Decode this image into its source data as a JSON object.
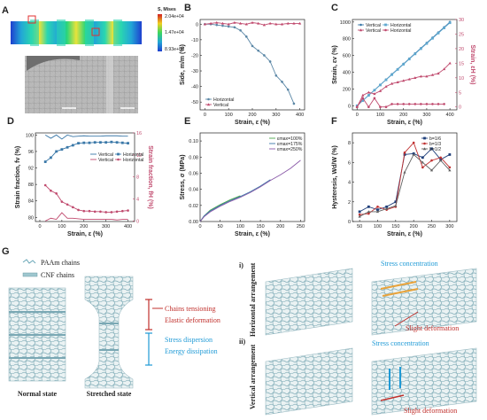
{
  "panels": {
    "A": {
      "label": "A",
      "colorbar_title": "S, Mises",
      "colorbar_ticks": [
        "2.04e+04",
        "1.47e+04",
        "8.93e+03"
      ]
    },
    "G": {
      "label": "G",
      "legend": [
        "PAAm chains",
        "CNF chains"
      ],
      "states": [
        "Normal state",
        "Stretched state"
      ],
      "annotations": [
        "Chains tensioning",
        "Elastic deformation",
        "Stress dispersion",
        "Energy dissipation"
      ],
      "sub_i": "i)",
      "sub_ii": "ii)",
      "row_i": "Horizontal arrangement",
      "row_ii": "Vertical arrangement",
      "stress_concentration": "Stress concentration",
      "slight_deformation": "Slight deformation"
    }
  },
  "chart_data": [
    {
      "id": "B",
      "type": "line",
      "xlabel": "Strain, ε (%)",
      "ylabel": "Side, m/m (%)",
      "xlim": [
        -20,
        420
      ],
      "ylim": [
        -55,
        3
      ],
      "xticks": [
        0,
        100,
        200,
        300,
        400
      ],
      "yticks": [
        0,
        -10,
        -20,
        -30,
        -40,
        -50
      ],
      "legend_position": "lower-left",
      "series": [
        {
          "name": "Horizontal",
          "color": "#5b87a6",
          "marker": "circle",
          "x": [
            0,
            25,
            50,
            75,
            100,
            125,
            150,
            175,
            200,
            225,
            250,
            275,
            300,
            325,
            350,
            375
          ],
          "y": [
            0,
            0,
            -0.5,
            -1,
            -1.5,
            -2,
            -4,
            -8,
            -14,
            -17,
            -20,
            -24,
            -33,
            -37,
            -42,
            -51
          ]
        },
        {
          "name": "Vertical",
          "color": "#c04a6e",
          "marker": "triangle",
          "x": [
            0,
            25,
            50,
            75,
            100,
            125,
            150,
            175,
            200,
            225,
            250,
            275,
            300,
            325,
            350,
            375,
            400
          ],
          "y": [
            0,
            0.5,
            1,
            0.5,
            0,
            1,
            0.5,
            0,
            1,
            0.5,
            -0.5,
            0.5,
            0,
            0,
            0.5,
            0.5,
            0.5
          ]
        }
      ]
    },
    {
      "id": "C",
      "type": "line",
      "xlabel": "Strain, ε (%)",
      "ylabel": "Strain, εv (%)",
      "ylabel2": "Strain, εH (%)",
      "xlim": [
        -20,
        430
      ],
      "ylim": [
        -50,
        1030
      ],
      "ylim2": [
        -1,
        30
      ],
      "xticks": [
        0,
        100,
        200,
        300,
        400
      ],
      "yticks": [
        0,
        200,
        400,
        600,
        800,
        1000
      ],
      "yticks2": [
        0,
        5,
        10,
        15,
        20,
        25,
        30
      ],
      "legend_position": "top-left",
      "series": [
        {
          "name": "Vertical",
          "axis": "left",
          "color": "#3a78a8",
          "marker": "circle",
          "x": [
            0,
            25,
            50,
            75,
            100,
            125,
            150,
            175,
            200,
            225,
            250,
            275,
            300,
            325,
            350,
            375,
            400
          ],
          "y": [
            0,
            62,
            125,
            187,
            250,
            312,
            375,
            437,
            500,
            562,
            625,
            687,
            750,
            812,
            875,
            937,
            1000
          ]
        },
        {
          "name": "Horizontal",
          "axis": "left",
          "color": "#5fa8cf",
          "marker": "square",
          "x": [
            0,
            25,
            50,
            75,
            100,
            125,
            150,
            175,
            200,
            225,
            250,
            275,
            300,
            325,
            350,
            375,
            400
          ],
          "y": [
            0,
            61,
            123,
            185,
            247,
            309,
            371,
            433,
            495,
            557,
            619,
            681,
            743,
            805,
            867,
            929,
            991
          ]
        },
        {
          "name": "Vertical",
          "axis": "right",
          "color": "#c04a6e",
          "marker": "triangle",
          "x": [
            0,
            25,
            50,
            75,
            100,
            125,
            150,
            175,
            200,
            225,
            250,
            275,
            300,
            325,
            350,
            375,
            400
          ],
          "y": [
            0,
            4,
            5,
            4.5,
            5.5,
            7,
            8,
            8.5,
            9,
            9.5,
            10,
            10.5,
            10.5,
            11,
            11.5,
            13,
            15
          ]
        },
        {
          "name": "Horizontal",
          "axis": "right",
          "color": "#c04a6e",
          "marker": "circle",
          "x": [
            0,
            25,
            50,
            75,
            100,
            125,
            150,
            175,
            200,
            225,
            250,
            275,
            300,
            325,
            350,
            375
          ],
          "y": [
            0,
            3,
            0,
            3,
            0,
            0,
            1,
            1,
            1,
            1,
            1,
            1,
            1,
            1,
            1,
            1
          ]
        }
      ]
    },
    {
      "id": "D",
      "type": "line",
      "xlabel": "Strain, ε (%)",
      "ylabel": "Strain fraction, fv (%)",
      "ylabel2": "Strain fraction, fH (%)",
      "xlim": [
        -20,
        430
      ],
      "ylim": [
        79,
        100.5
      ],
      "ylim2": [
        -0.1,
        16
      ],
      "xticks": [
        0,
        100,
        200,
        300,
        400
      ],
      "yticks": [
        80,
        84,
        88,
        92,
        96,
        100
      ],
      "yticks2": [
        0,
        4,
        8,
        12,
        16
      ],
      "legend_position": "center-right",
      "series": [
        {
          "name": "Vertical",
          "axis": "left",
          "color": "#3a78a8",
          "marker": "none",
          "x": [
            25,
            50,
            75,
            100,
            125,
            150,
            175,
            200,
            225,
            250,
            275,
            300,
            325,
            350,
            375,
            400
          ],
          "y": [
            100,
            99.2,
            100,
            99,
            100,
            99.6,
            99.7,
            99.8,
            99.7,
            99.7,
            99.7,
            99.8,
            99.8,
            99.8,
            99.7,
            99.7
          ]
        },
        {
          "name": "Horizontal",
          "axis": "left",
          "color": "#3a78a8",
          "marker": "square",
          "x": [
            25,
            50,
            75,
            100,
            125,
            150,
            175,
            200,
            225,
            250,
            275,
            300,
            325,
            350,
            375,
            400
          ],
          "y": [
            93.5,
            94.5,
            96,
            96.5,
            97,
            97.5,
            98,
            98.1,
            98.1,
            98.2,
            98.2,
            98.2,
            98.3,
            98.2,
            98.1,
            98
          ]
        },
        {
          "name": "Vertical",
          "axis": "right",
          "color": "#c04a6e",
          "marker": "none",
          "x": [
            25,
            50,
            75,
            100,
            125,
            150,
            175,
            200,
            225,
            250,
            275,
            300,
            325,
            350,
            375,
            400
          ],
          "y": [
            0,
            0.5,
            0.3,
            1.5,
            0.5,
            0.5,
            0.4,
            0.3,
            0.3,
            0.3,
            0.3,
            0.3,
            0.3,
            0.2,
            0.3,
            0.3
          ]
        },
        {
          "name": "Horizontal",
          "axis": "right",
          "color": "#c04a6e",
          "marker": "circle",
          "x": [
            25,
            50,
            75,
            100,
            125,
            150,
            175,
            200,
            225,
            250,
            275,
            300,
            325,
            350,
            375,
            400
          ],
          "y": [
            6.5,
            5.5,
            5,
            3.5,
            3,
            2.5,
            2,
            1.8,
            1.8,
            1.7,
            1.7,
            1.6,
            1.6,
            1.7,
            1.8,
            1.9
          ]
        }
      ]
    },
    {
      "id": "E",
      "type": "line",
      "xlabel": "Strain, ε (%)",
      "ylabel": "Stress, σ (MPa)",
      "xlim": [
        0,
        260
      ],
      "ylim": [
        0,
        0.11
      ],
      "xticks": [
        0,
        50,
        100,
        150,
        200,
        250
      ],
      "yticks": [
        0,
        0.02,
        0.04,
        0.06,
        0.08,
        0.1
      ],
      "yticklabels": [
        "0.00",
        "0.02",
        "0.04",
        "0.06",
        "0.08",
        "0.10"
      ],
      "legend_position": "top-right",
      "series": [
        {
          "name": "εmax=100%",
          "color": "#4aa84a",
          "x": [
            0,
            10,
            25,
            50,
            75,
            100
          ],
          "y": [
            0,
            0.007,
            0.014,
            0.021,
            0.027,
            0.032
          ]
        },
        {
          "name": "εmax=175%",
          "color": "#3a78a8",
          "x": [
            0,
            10,
            25,
            50,
            75,
            100,
            125,
            150,
            175
          ],
          "y": [
            0,
            0.007,
            0.013,
            0.02,
            0.026,
            0.031,
            0.037,
            0.044,
            0.052
          ]
        },
        {
          "name": "εmax=250%",
          "color": "#8a5aa8",
          "x": [
            0,
            10,
            25,
            50,
            75,
            100,
            125,
            150,
            175,
            200,
            225,
            250
          ],
          "y": [
            0,
            0.006,
            0.012,
            0.019,
            0.025,
            0.03,
            0.036,
            0.043,
            0.051,
            0.058,
            0.066,
            0.076
          ]
        }
      ]
    },
    {
      "id": "F",
      "type": "line",
      "xlabel": "Strain, ε (%)",
      "ylabel": "Hysteresis, Wd/W (%)",
      "xlim": [
        30,
        320
      ],
      "ylim": [
        0,
        9
      ],
      "xticks": [
        50,
        100,
        150,
        200,
        250,
        300
      ],
      "yticks": [
        0,
        2,
        4,
        6,
        8
      ],
      "legend_position": "top-right",
      "series": [
        {
          "name": "b=1/6",
          "color": "#1f3f7a",
          "marker": "square",
          "x": [
            50,
            75,
            100,
            125,
            150,
            175,
            200,
            225,
            250,
            275,
            300
          ],
          "y": [
            1.0,
            1.5,
            1.2,
            1.5,
            2.0,
            6.8,
            6.9,
            6.5,
            7.4,
            6.3,
            6.8
          ]
        },
        {
          "name": "b=1/3",
          "color": "#c03030",
          "marker": "circle",
          "x": [
            50,
            75,
            100,
            125,
            150,
            175,
            200,
            225,
            250,
            275,
            300
          ],
          "y": [
            0.7,
            0.8,
            1.5,
            1.2,
            1.5,
            7.0,
            8.0,
            5.5,
            6.2,
            6.5,
            5.5
          ]
        },
        {
          "name": "b=1/2",
          "color": "#606060",
          "marker": "triangle",
          "x": [
            50,
            75,
            100,
            125,
            150,
            175,
            200,
            225,
            250,
            275,
            300
          ],
          "y": [
            0.5,
            1.0,
            1.0,
            1.3,
            1.6,
            5.0,
            6.8,
            6.0,
            5.2,
            6.2,
            5.2
          ]
        }
      ]
    }
  ]
}
